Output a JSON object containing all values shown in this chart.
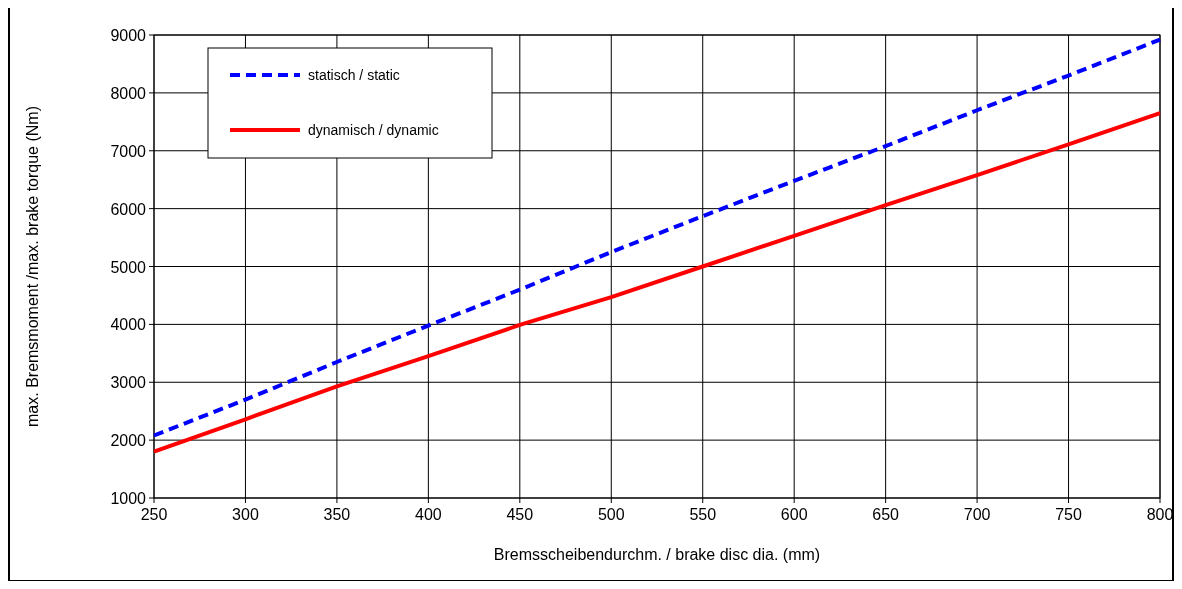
{
  "chart_data": {
    "type": "line",
    "xlabel": "Bremsscheibendurchm. / brake disc dia. (mm)",
    "ylabel": "max. Bremsmoment /max. brake torque (Nm)",
    "x": [
      250,
      300,
      350,
      400,
      450,
      500,
      550,
      600,
      650,
      700,
      750,
      800
    ],
    "series": [
      {
        "name": "statisch / static",
        "color": "#0000ff",
        "line_style": "dashed",
        "values": [
          2080,
          2700,
          3350,
          3980,
          4600,
          5250,
          5870,
          6480,
          7080,
          7700,
          8300,
          8920
        ]
      },
      {
        "name": "dynamisch / dynamic",
        "color": "#ff0000",
        "line_style": "solid",
        "values": [
          1800,
          2360,
          2930,
          3450,
          3990,
          4470,
          5000,
          5530,
          6060,
          6580,
          7110,
          7650
        ]
      }
    ],
    "xlim": [
      250,
      800
    ],
    "xticks": [
      250,
      300,
      350,
      400,
      450,
      500,
      550,
      600,
      650,
      700,
      750,
      800
    ],
    "ylim": [
      1000,
      9000
    ],
    "yticks": [
      1000,
      2000,
      3000,
      4000,
      5000,
      6000,
      7000,
      8000,
      9000
    ],
    "grid": true,
    "legend": "top left"
  }
}
